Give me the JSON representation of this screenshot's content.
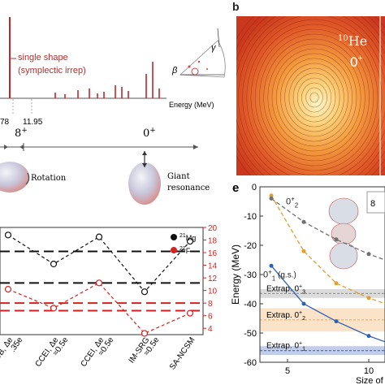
{
  "panel_a": {
    "spectrum_callout_line1": "single shape",
    "spectrum_callout_line2": "(symplectic irrep)",
    "energy_axis_label": "Energy (MeV)",
    "tick_left": "78",
    "tick_right": "11.95",
    "state_left": "8",
    "state_left_sup": "+",
    "state_right": "0",
    "state_right_sup": "+",
    "caption_rotation": "Rotation",
    "caption_giant_line1": "Giant",
    "caption_giant_line2": "resonance",
    "inset_gamma": "γ",
    "inset_beta": "β",
    "spectrum_bar_heights": [
      1.0,
      0.07,
      0.05,
      0.1,
      0.12,
      0.06,
      0.08,
      0.16,
      0.14,
      0.09,
      0.3,
      0.45,
      0.12
    ]
  },
  "panel_b": {
    "letter": "b",
    "nucleus_mass": "10",
    "nucleus_symbol": "He",
    "state": "0",
    "state_sup": "+"
  },
  "chart_data": [
    {
      "type": "line",
      "right_axis_ticks": [
        "20",
        "18",
        "16",
        "14",
        "12",
        "10",
        "8",
        "6",
        "4"
      ],
      "x_tick_labels": [
        {
          "l1": "DB, Δe",
          "l2": ".35e"
        },
        {
          "l1": "CCEI, Δe",
          "l2": "≈0.5e"
        },
        {
          "l1": "CCEI, Δe",
          "l2": "≈0.5e"
        },
        {
          "l1": "IM-SRG",
          "l2": "≈0.5e"
        },
        {
          "l1": "SA-NCSM",
          "l2": ""
        }
      ],
      "legend": [
        {
          "mass": "21",
          "symbol": "Mg",
          "color": "#111111"
        },
        {
          "mass": "21",
          "symbol": "F",
          "color": "#d42020"
        }
      ],
      "series": [
        {
          "name": "21Mg",
          "color": "#111111",
          "values": [
            18.8,
            14.2,
            18.5,
            9.8,
            17.8
          ]
        },
        {
          "name": "21F",
          "color": "#d42020",
          "values": [
            10.2,
            7.2,
            11.2,
            3.2,
            6.4
          ]
        }
      ],
      "reference_lines": [
        {
          "value": 16.2,
          "color": "#111111"
        },
        {
          "value": 11.2,
          "color": "#111111"
        },
        {
          "value": 8.0,
          "color": "#d42020"
        },
        {
          "value": 6.8,
          "color": "#d42020"
        }
      ],
      "ylim": [
        3,
        20
      ]
    },
    {
      "type": "line",
      "panel_letter": "e",
      "ylabel": "Energy (MeV)",
      "xlabel": "Size of",
      "ylim": [
        -60,
        0
      ],
      "yticks": [
        "0",
        "-10",
        "-20",
        "-30",
        "-40",
        "-50",
        "-60"
      ],
      "xticks": [
        "5",
        "10"
      ],
      "series": [
        {
          "name": "0+2",
          "label": "0",
          "label_sup": "+",
          "label_sub": "2",
          "color": "#e0a030",
          "x": [
            4,
            6,
            8,
            10,
            11
          ],
          "y": [
            -3,
            -22,
            -33,
            -38,
            -40
          ]
        },
        {
          "name": "0+1 (g.s.)",
          "label": "0",
          "label_sup": "+",
          "label_sub": "1",
          "label_suffix": "(g.s.)",
          "color": "#3060b0",
          "x": [
            4,
            6,
            8,
            10,
            11
          ],
          "y": [
            -27,
            -40,
            -46,
            -51,
            -53
          ]
        },
        {
          "name": "gray",
          "color": "#707070",
          "x": [
            4,
            6,
            8,
            10,
            11
          ],
          "y": [
            -4,
            -12,
            -18,
            -23,
            -25
          ]
        }
      ],
      "bands": [
        {
          "label": "Extrap. 0",
          "sup": "+",
          "sub": "3",
          "center": -36.5,
          "half_width": 1.5,
          "color": "#999999"
        },
        {
          "label": "Extrap. 0",
          "sup": "+",
          "sub": "2",
          "center": -45.5,
          "half_width": 4.0,
          "color": "#f2b060"
        },
        {
          "label": "Extrap. 0",
          "sup": "+",
          "sub": "1",
          "center": -56.0,
          "half_width": 1.5,
          "color": "#5070c0"
        }
      ],
      "corner_digit": "8"
    }
  ]
}
